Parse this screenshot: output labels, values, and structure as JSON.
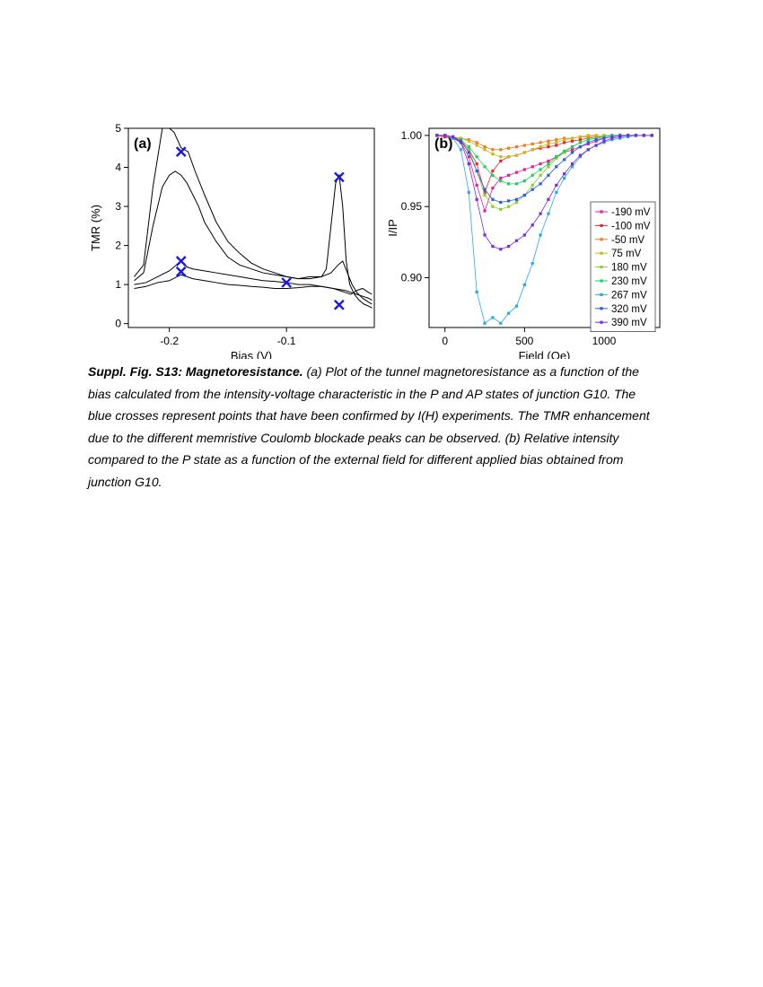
{
  "caption": {
    "label": "Suppl. Fig. S13:",
    "heading": "Magnetoresistance.",
    "text": "(a) Plot of the tunnel magnetoresistance as a function of the bias calculated from the intensity-voltage characteristic in the P and AP states of junction G10. The blue crosses represent points that have been confirmed by I(H) experiments. The TMR enhancement due to the different memristive Coulomb blockade peaks can be observed. (b) Relative intensity compared to the P state as a function of the external field for different applied bias obtained from junction G10."
  },
  "colors": {
    "cross": "#1a1adf",
    "trace": "#000000"
  },
  "chart_data": [
    {
      "panel_label": "(a)",
      "type": "line",
      "xlabel": "Bias (V)",
      "ylabel": "TMR (%)",
      "xlim": [
        -0.235,
        -0.025
      ],
      "ylim": [
        -0.1,
        5.0
      ],
      "xticks": [
        -0.2,
        -0.1
      ],
      "xtick_labels": [
        "-0.2",
        "-0.1"
      ],
      "yticks": [
        0,
        1,
        2,
        3,
        4,
        5
      ],
      "series": [
        {
          "x": [
            -0.23,
            -0.222,
            -0.214,
            -0.206,
            -0.2,
            -0.196,
            -0.19,
            -0.184,
            -0.178,
            -0.17,
            -0.16,
            -0.15,
            -0.14,
            -0.13,
            -0.12,
            -0.11,
            -0.1,
            -0.09,
            -0.08,
            -0.07,
            -0.066,
            -0.062,
            -0.058,
            -0.055,
            -0.052,
            -0.049,
            -0.046,
            -0.042,
            -0.038,
            -0.034,
            -0.03,
            -0.027
          ],
          "y": [
            1.2,
            1.5,
            3.5,
            5.0,
            5.0,
            4.9,
            4.5,
            4.4,
            3.9,
            3.3,
            2.6,
            2.1,
            1.8,
            1.55,
            1.4,
            1.3,
            1.2,
            1.15,
            1.15,
            1.2,
            1.4,
            2.5,
            3.6,
            3.8,
            3.0,
            1.6,
            1.0,
            0.75,
            0.6,
            0.5,
            0.45,
            0.4
          ]
        },
        {
          "x": [
            -0.23,
            -0.222,
            -0.214,
            -0.206,
            -0.2,
            -0.195,
            -0.19,
            -0.185,
            -0.18,
            -0.175,
            -0.17,
            -0.16,
            -0.15,
            -0.14,
            -0.13,
            -0.12,
            -0.11,
            -0.1,
            -0.09,
            -0.08,
            -0.07,
            -0.062,
            -0.056,
            -0.052,
            -0.048,
            -0.044,
            -0.04,
            -0.035,
            -0.03,
            -0.027
          ],
          "y": [
            1.1,
            1.3,
            2.5,
            3.5,
            3.8,
            3.9,
            3.8,
            3.6,
            3.3,
            3.0,
            2.6,
            2.1,
            1.7,
            1.5,
            1.4,
            1.3,
            1.25,
            1.2,
            1.15,
            1.2,
            1.2,
            1.3,
            1.5,
            1.6,
            1.3,
            1.0,
            0.8,
            0.65,
            0.55,
            0.5
          ]
        },
        {
          "x": [
            -0.23,
            -0.22,
            -0.21,
            -0.2,
            -0.19,
            -0.185,
            -0.18,
            -0.17,
            -0.16,
            -0.15,
            -0.14,
            -0.13,
            -0.12,
            -0.11,
            -0.1,
            -0.09,
            -0.08,
            -0.07,
            -0.06,
            -0.05,
            -0.045,
            -0.04,
            -0.035,
            -0.03,
            -0.027
          ],
          "y": [
            1.0,
            1.05,
            1.2,
            1.35,
            1.6,
            1.45,
            1.4,
            1.35,
            1.3,
            1.25,
            1.2,
            1.15,
            1.1,
            1.08,
            1.05,
            1.0,
            1.0,
            0.95,
            0.9,
            0.85,
            0.8,
            0.75,
            0.7,
            0.65,
            0.6
          ]
        },
        {
          "x": [
            -0.23,
            -0.22,
            -0.21,
            -0.2,
            -0.19,
            -0.185,
            -0.18,
            -0.17,
            -0.16,
            -0.15,
            -0.14,
            -0.13,
            -0.12,
            -0.11,
            -0.1,
            -0.09,
            -0.08,
            -0.07,
            -0.06,
            -0.05,
            -0.045,
            -0.04,
            -0.035,
            -0.03,
            -0.027
          ],
          "y": [
            0.9,
            0.95,
            1.05,
            1.1,
            1.25,
            1.2,
            1.15,
            1.1,
            1.05,
            1.0,
            0.98,
            0.95,
            0.93,
            0.9,
            0.9,
            0.92,
            0.95,
            0.95,
            0.9,
            0.8,
            0.75,
            0.85,
            0.9,
            0.8,
            0.75
          ]
        }
      ],
      "crosses": [
        {
          "x": -0.19,
          "y": 4.4
        },
        {
          "x": -0.19,
          "y": 1.6
        },
        {
          "x": -0.19,
          "y": 1.33
        },
        {
          "x": -0.1,
          "y": 1.05
        },
        {
          "x": -0.055,
          "y": 3.75
        },
        {
          "x": -0.055,
          "y": 0.48
        }
      ]
    },
    {
      "panel_label": "(b)",
      "type": "line",
      "xlabel": "Field (Oe)",
      "ylabel": "I/IP",
      "xlim": [
        -100,
        1350
      ],
      "ylim": [
        0.865,
        1.005
      ],
      "xticks": [
        0,
        500,
        1000
      ],
      "yticks": [
        0.9,
        0.95,
        1.0
      ],
      "ytick_labels": [
        "0.90",
        "0.95",
        "1.00"
      ],
      "legend_position": "bottom-right",
      "x": [
        -50,
        0,
        50,
        100,
        150,
        200,
        250,
        300,
        350,
        400,
        450,
        500,
        550,
        600,
        650,
        700,
        750,
        800,
        850,
        900,
        950,
        1000,
        1050,
        1100,
        1150,
        1200,
        1250,
        1300
      ],
      "series": [
        {
          "name": "-190 mV",
          "color": "#e0229a",
          "values": [
            1.0,
            0.999,
            0.998,
            0.995,
            0.985,
            0.965,
            0.947,
            0.963,
            0.97,
            0.972,
            0.974,
            0.976,
            0.978,
            0.98,
            0.982,
            0.985,
            0.988,
            0.99,
            0.992,
            0.994,
            0.996,
            0.998,
            0.999,
            1.0,
            1.0,
            1.0,
            1.0,
            1.0
          ]
        },
        {
          "name": "-100 mV",
          "color": "#e02a2a",
          "values": [
            1.0,
            0.999,
            0.998,
            0.996,
            0.99,
            0.98,
            0.96,
            0.975,
            0.982,
            0.985,
            0.986,
            0.988,
            0.99,
            0.991,
            0.992,
            0.993,
            0.995,
            0.996,
            0.997,
            0.998,
            0.999,
            0.999,
            1.0,
            1.0,
            1.0,
            1.0,
            1.0,
            1.0
          ]
        },
        {
          "name": "-50 mV",
          "color": "#f07c1c",
          "values": [
            1.0,
            1.0,
            0.999,
            0.998,
            0.997,
            0.995,
            0.992,
            0.99,
            0.99,
            0.991,
            0.992,
            0.993,
            0.994,
            0.995,
            0.996,
            0.997,
            0.998,
            0.998,
            0.999,
            0.999,
            1.0,
            1.0,
            1.0,
            1.0,
            1.0,
            1.0,
            1.0,
            1.0
          ]
        },
        {
          "name": "75 mV",
          "color": "#c9b81c",
          "values": [
            1.0,
            1.0,
            0.999,
            0.998,
            0.996,
            0.993,
            0.99,
            0.987,
            0.985,
            0.985,
            0.986,
            0.988,
            0.99,
            0.992,
            0.994,
            0.995,
            0.997,
            0.998,
            0.999,
            1.0,
            1.0,
            1.0,
            1.0,
            1.0,
            1.0,
            1.0,
            1.0,
            1.0
          ]
        },
        {
          "name": "180 mV",
          "color": "#86d12a",
          "values": [
            1.0,
            1.0,
            0.999,
            0.997,
            0.99,
            0.975,
            0.958,
            0.95,
            0.948,
            0.95,
            0.953,
            0.958,
            0.965,
            0.972,
            0.978,
            0.984,
            0.988,
            0.992,
            0.995,
            0.997,
            0.998,
            0.999,
            1.0,
            1.0,
            1.0,
            1.0,
            1.0,
            1.0
          ]
        },
        {
          "name": "230 mV",
          "color": "#1fcf5a",
          "values": [
            1.0,
            1.0,
            0.999,
            0.997,
            0.992,
            0.985,
            0.978,
            0.972,
            0.968,
            0.966,
            0.966,
            0.968,
            0.972,
            0.976,
            0.98,
            0.985,
            0.989,
            0.992,
            0.995,
            0.997,
            0.998,
            0.999,
            1.0,
            1.0,
            1.0,
            1.0,
            1.0,
            1.0
          ]
        },
        {
          "name": "267 mV",
          "color": "#2aa6ea",
          "values": [
            1.0,
            1.0,
            0.998,
            0.99,
            0.96,
            0.89,
            0.868,
            0.872,
            0.868,
            0.875,
            0.88,
            0.895,
            0.91,
            0.93,
            0.945,
            0.96,
            0.97,
            0.978,
            0.985,
            0.99,
            0.993,
            0.995,
            0.997,
            0.998,
            0.999,
            1.0,
            1.0,
            1.0
          ]
        },
        {
          "name": "320 mV",
          "color": "#2a5be6",
          "values": [
            1.0,
            1.0,
            0.999,
            0.996,
            0.988,
            0.975,
            0.962,
            0.955,
            0.953,
            0.954,
            0.955,
            0.958,
            0.962,
            0.966,
            0.972,
            0.978,
            0.983,
            0.988,
            0.992,
            0.995,
            0.997,
            0.998,
            0.999,
            1.0,
            1.0,
            1.0,
            1.0,
            1.0
          ]
        },
        {
          "name": "390 mV",
          "color": "#7a2ad6",
          "values": [
            1.0,
            1.0,
            0.999,
            0.995,
            0.98,
            0.955,
            0.93,
            0.922,
            0.92,
            0.922,
            0.926,
            0.93,
            0.937,
            0.945,
            0.955,
            0.965,
            0.973,
            0.98,
            0.986,
            0.99,
            0.993,
            0.996,
            0.998,
            0.999,
            1.0,
            1.0,
            1.0,
            1.0
          ]
        }
      ]
    }
  ]
}
